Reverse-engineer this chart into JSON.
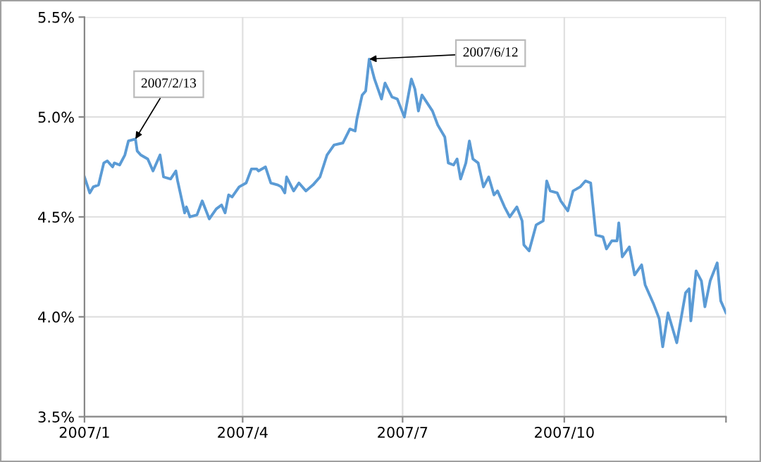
{
  "chart_data": {
    "type": "line",
    "x": [
      "2007-01-01",
      "2007-01-04",
      "2007-01-06",
      "2007-01-09",
      "2007-01-12",
      "2007-01-14",
      "2007-01-17",
      "2007-01-18",
      "2007-01-21",
      "2007-01-24",
      "2007-01-26",
      "2007-01-30",
      "2007-01-31",
      "2007-02-02",
      "2007-02-06",
      "2007-02-09",
      "2007-02-13",
      "2007-02-15",
      "2007-02-19",
      "2007-02-22",
      "2007-02-23",
      "2007-02-27",
      "2007-02-28",
      "2007-03-02",
      "2007-03-06",
      "2007-03-09",
      "2007-03-13",
      "2007-03-17",
      "2007-03-20",
      "2007-03-22",
      "2007-03-24",
      "2007-03-26",
      "2007-03-30",
      "2007-04-03",
      "2007-04-06",
      "2007-04-09",
      "2007-04-10",
      "2007-04-14",
      "2007-04-17",
      "2007-04-21",
      "2007-04-23",
      "2007-04-25",
      "2007-04-26",
      "2007-04-30",
      "2007-05-03",
      "2007-05-07",
      "2007-05-11",
      "2007-05-15",
      "2007-05-19",
      "2007-05-23",
      "2007-05-28",
      "2007-06-01",
      "2007-06-04",
      "2007-06-05",
      "2007-06-08",
      "2007-06-10",
      "2007-06-11",
      "2007-06-12",
      "2007-06-15",
      "2007-06-17",
      "2007-06-19",
      "2007-06-21",
      "2007-06-25",
      "2007-06-28",
      "2007-07-02",
      "2007-07-06",
      "2007-07-08",
      "2007-07-10",
      "2007-07-12",
      "2007-07-18",
      "2007-07-21",
      "2007-07-25",
      "2007-07-27",
      "2007-07-30",
      "2007-08-01",
      "2007-08-03",
      "2007-08-06",
      "2007-08-08",
      "2007-08-10",
      "2007-08-13",
      "2007-08-16",
      "2007-08-19",
      "2007-08-22",
      "2007-08-24",
      "2007-08-28",
      "2007-08-31",
      "2007-09-04",
      "2007-09-07",
      "2007-09-08",
      "2007-09-11",
      "2007-09-15",
      "2007-09-19",
      "2007-09-21",
      "2007-09-23",
      "2007-09-27",
      "2007-09-29",
      "2007-10-03",
      "2007-10-06",
      "2007-10-10",
      "2007-10-13",
      "2007-10-16",
      "2007-10-19",
      "2007-10-23",
      "2007-10-25",
      "2007-10-28",
      "2007-10-31",
      "2007-11-01",
      "2007-11-03",
      "2007-11-07",
      "2007-11-10",
      "2007-11-14",
      "2007-11-16",
      "2007-11-21",
      "2007-11-24",
      "2007-11-26",
      "2007-11-29",
      "2007-12-01",
      "2007-12-04",
      "2007-12-09",
      "2007-12-11",
      "2007-12-12",
      "2007-12-15",
      "2007-12-18",
      "2007-12-20",
      "2007-12-23",
      "2007-12-27",
      "2007-12-29",
      "2008-01-01"
    ],
    "series": [
      {
        "color": "#5b9bd5",
        "values": [
          4.7,
          4.62,
          4.65,
          4.66,
          4.77,
          4.78,
          4.75,
          4.77,
          4.76,
          4.81,
          4.88,
          4.89,
          4.83,
          4.81,
          4.79,
          4.73,
          4.81,
          4.7,
          4.69,
          4.73,
          4.68,
          4.52,
          4.55,
          4.5,
          4.51,
          4.58,
          4.49,
          4.54,
          4.56,
          4.52,
          4.61,
          4.6,
          4.65,
          4.67,
          4.74,
          4.74,
          4.73,
          4.75,
          4.67,
          4.66,
          4.65,
          4.62,
          4.7,
          4.63,
          4.67,
          4.63,
          4.66,
          4.7,
          4.81,
          4.86,
          4.87,
          4.94,
          4.93,
          4.99,
          5.11,
          5.13,
          5.21,
          5.29,
          5.19,
          5.14,
          5.09,
          5.17,
          5.1,
          5.09,
          5.0,
          5.19,
          5.14,
          5.03,
          5.11,
          5.03,
          4.96,
          4.9,
          4.77,
          4.76,
          4.79,
          4.69,
          4.77,
          4.88,
          4.79,
          4.77,
          4.65,
          4.7,
          4.61,
          4.63,
          4.55,
          4.5,
          4.55,
          4.48,
          4.36,
          4.33,
          4.46,
          4.48,
          4.68,
          4.63,
          4.62,
          4.58,
          4.53,
          4.63,
          4.65,
          4.68,
          4.67,
          4.41,
          4.4,
          4.34,
          4.38,
          4.38,
          4.47,
          4.3,
          4.35,
          4.21,
          4.26,
          4.16,
          4.06,
          3.99,
          3.85,
          4.02,
          3.96,
          3.87,
          4.12,
          4.14,
          3.98,
          4.23,
          4.18,
          4.05,
          4.18,
          4.27,
          4.08,
          4.02
        ]
      }
    ],
    "xlim": [
      "2007-01-01",
      "2008-01-01"
    ],
    "xticks": [
      {
        "value": "2007-01-01",
        "label": "2007/1"
      },
      {
        "value": "2007-04-01",
        "label": "2007/4"
      },
      {
        "value": "2007-07-01",
        "label": "2007/7"
      },
      {
        "value": "2007-10-01",
        "label": "2007/10"
      },
      {
        "value": "2008-01-01",
        "label": null
      }
    ],
    "ylim": [
      3.5,
      5.5
    ],
    "yticks": [
      {
        "value": 3.5,
        "label": "3.5%"
      },
      {
        "value": 4.0,
        "label": "4.0%"
      },
      {
        "value": 4.5,
        "label": "4.5%"
      },
      {
        "value": 5.0,
        "label": "5.0%"
      },
      {
        "value": 5.5,
        "label": "5.5%"
      }
    ],
    "grid": true,
    "annotations": [
      {
        "text": "2007/2/13",
        "x": "2007-01-30",
        "y": 4.89
      },
      {
        "text": "2007/6/12",
        "x": "2007-06-12",
        "y": 5.29
      }
    ]
  }
}
